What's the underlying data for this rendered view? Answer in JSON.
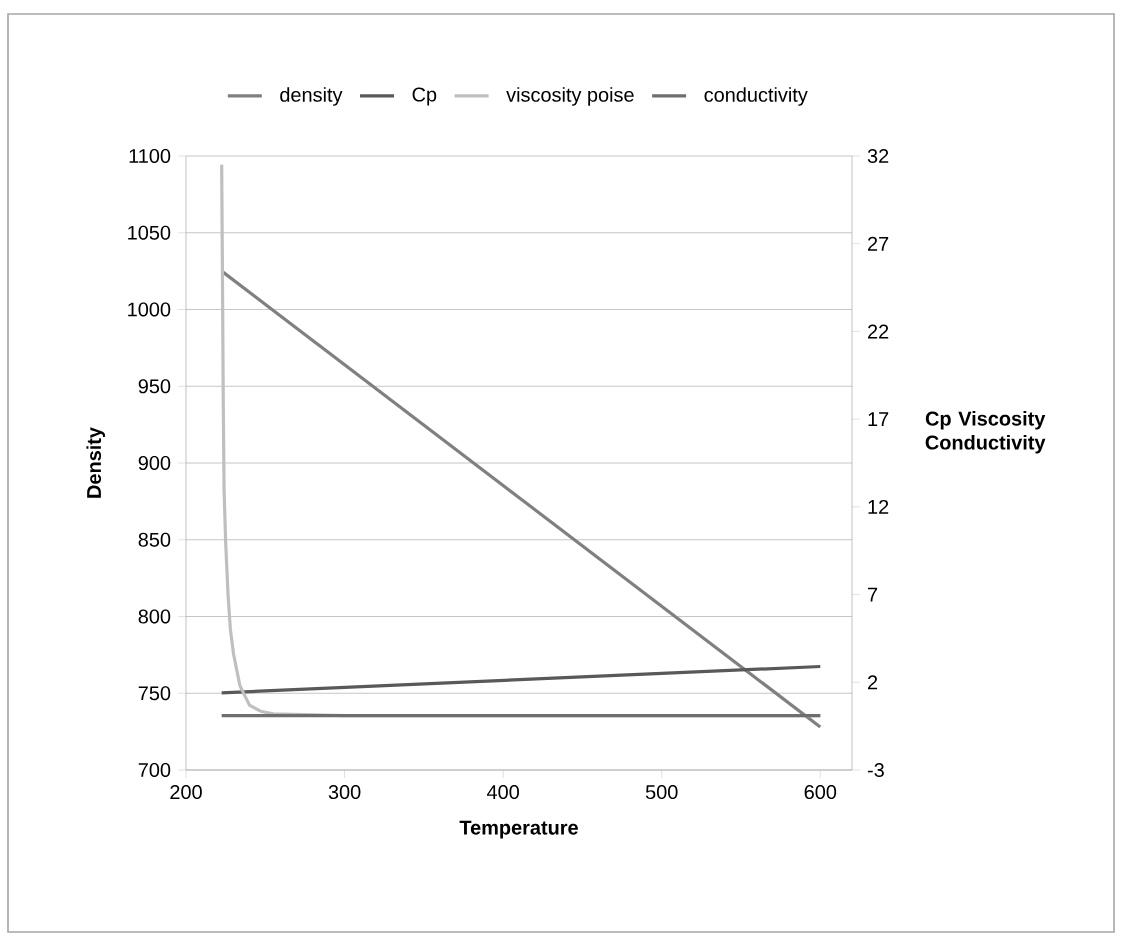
{
  "chart_data": {
    "type": "line",
    "xlabel": "Temperature",
    "ylabel": "Density",
    "y2label": "Cp Viscosity Conductivity",
    "xlim": [
      200,
      620
    ],
    "xticks": [
      200,
      300,
      400,
      500,
      600
    ],
    "ylim": [
      700,
      1100
    ],
    "yticks": [
      700,
      750,
      800,
      850,
      900,
      950,
      1000,
      1050,
      1100
    ],
    "y2lim": [
      -3,
      32
    ],
    "y2ticks": [
      -3,
      2,
      7,
      12,
      17,
      22,
      27,
      32
    ],
    "grid": "y",
    "legend": "top",
    "marker": "none",
    "line_style": "solid",
    "series": [
      {
        "name": "density",
        "color": "#808080",
        "x": [
          222.5,
          600
        ],
        "values": [
          1025,
          728
        ]
      },
      {
        "name": "Cp",
        "color": "#595959",
        "axis": "y2",
        "x": [
          222.5,
          600
        ],
        "values": [
          1.4,
          2.9
        ]
      },
      {
        "name": "viscosity poise",
        "color": "#bfbfbf",
        "axis": "y2",
        "x": [
          222.5,
          223,
          223.5,
          224,
          225,
          226.5,
          228,
          230,
          234,
          240,
          247,
          255,
          300,
          400,
          600
        ],
        "values": [
          31.5,
          25,
          18,
          13,
          10,
          7,
          5,
          3.6,
          1.8,
          0.7,
          0.35,
          0.2,
          0.1,
          0.1,
          0.1
        ]
      },
      {
        "name": "conductivity",
        "color": "#6e6e6e",
        "axis": "y2",
        "x": [
          222.5,
          600
        ],
        "values": [
          0.1,
          0.1
        ]
      }
    ]
  }
}
